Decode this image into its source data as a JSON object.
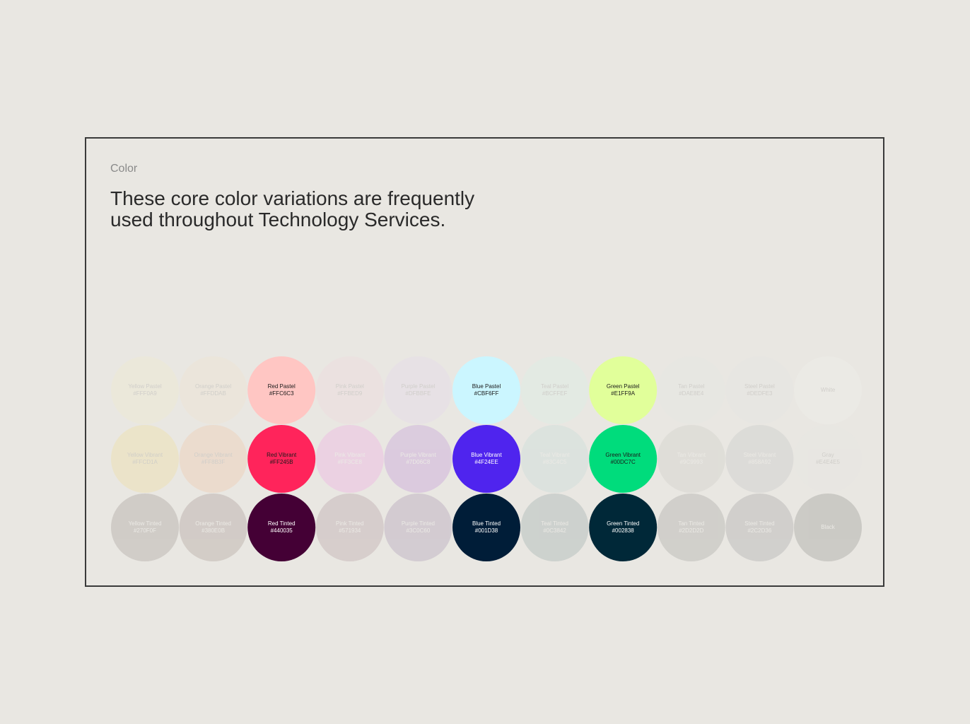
{
  "section_label": "Color",
  "heading": [
    "These core color variations are frequently",
    "used throughout Technology Services."
  ],
  "rows": [
    {
      "swatches": [
        {
          "name": "Yellow Pastel",
          "hex": "#FFF0A9",
          "color": "#FFF0A9",
          "text_color": "#1a1a1a",
          "active": false
        },
        {
          "name": "Orange Pastel",
          "hex": "#FFDDAB",
          "color": "#FFDDAB",
          "text_color": "#1a1a1a",
          "active": false
        },
        {
          "name": "Red Pastel",
          "hex": "#FFC6C3",
          "color": "#FFC6C3",
          "text_color": "#1a1a1a",
          "active": true
        },
        {
          "name": "Pink Pastel",
          "hex": "#FFBED9",
          "color": "#FFBED9",
          "text_color": "#1a1a1a",
          "active": false
        },
        {
          "name": "Purple Pastel",
          "hex": "#DFBBFE",
          "color": "#DFBBFE",
          "text_color": "#1a1a1a",
          "active": false
        },
        {
          "name": "Blue Pastel",
          "hex": "#CBF6FF",
          "color": "#CBF6FF",
          "text_color": "#1a1a1a",
          "active": true
        },
        {
          "name": "Teal Pastel",
          "hex": "#BCFFEF",
          "color": "#BCFFEF",
          "text_color": "#1a1a1a",
          "active": false
        },
        {
          "name": "Green Pastel",
          "hex": "#E1FF9A",
          "color": "#E1FF9A",
          "text_color": "#1a1a1a",
          "active": true
        },
        {
          "name": "Tan Pastel",
          "hex": "#DAE8E4",
          "color": "#DAE8E4",
          "text_color": "#1a1a1a",
          "active": false
        },
        {
          "name": "Steel Pastel",
          "hex": "#DEDFE3",
          "color": "#DEDFE3",
          "text_color": "#1a1a1a",
          "active": false
        },
        {
          "name": "White",
          "color": "#FFFFFF",
          "text_color": "#1a1a1a",
          "active": false
        }
      ]
    },
    {
      "swatches": [
        {
          "name": "Yellow Vibrant",
          "hex": "#FFCD1A",
          "color": "#FFCD1A",
          "text_color": "#1a1a1a",
          "active": false
        },
        {
          "name": "Orange Vibrant",
          "hex": "#FF8B3F",
          "color": "#FF8B3F",
          "text_color": "#1a1a1a",
          "active": false
        },
        {
          "name": "Red Vibrant",
          "hex": "#FF245B",
          "color": "#FF245B",
          "text_color": "#1a1a1a",
          "active": true
        },
        {
          "name": "Pink Vibrant",
          "hex": "#FF3CE8",
          "color": "#FF3CE8",
          "text_color": "#ffffff",
          "active": false
        },
        {
          "name": "Purple Vibrant",
          "hex": "#7D06C8",
          "color": "#7D06C8",
          "text_color": "#ffffff",
          "active": false
        },
        {
          "name": "Blue Vibrant",
          "hex": "#4F24EE",
          "color": "#4F24EE",
          "text_color": "#ffffff",
          "active": true
        },
        {
          "name": "Teal Vibrant",
          "hex": "#83C4C5",
          "color": "#83C4C5",
          "text_color": "#ffffff",
          "active": false
        },
        {
          "name": "Green Vibrant",
          "hex": "#00DC7C",
          "color": "#00DC7C",
          "text_color": "#1a1a1a",
          "active": true
        },
        {
          "name": "Tan Vibrant",
          "hex": "#9C9993",
          "color": "#9C9993",
          "text_color": "#ffffff",
          "active": false
        },
        {
          "name": "Steel Vibrant",
          "hex": "#858A92",
          "color": "#858A92",
          "text_color": "#ffffff",
          "active": false
        },
        {
          "name": "Gray",
          "hex": "#E4E4E5",
          "color": "#E4E4E5",
          "text_color": "#1a1a1a",
          "active": false
        }
      ]
    },
    {
      "swatches": [
        {
          "name": "Yellow Tinted",
          "hex": "#270F0F",
          "color": "#270F0F",
          "text_color": "#ffffff",
          "active": false
        },
        {
          "name": "Orange Tinted",
          "hex": "#380E0B",
          "color": "#380E0B",
          "text_color": "#ffffff",
          "active": false
        },
        {
          "name": "Red Tinted",
          "hex": "#440035",
          "color": "#440035",
          "text_color": "#ffffff",
          "active": true
        },
        {
          "name": "Pink Tinted",
          "hex": "#571934",
          "color": "#571934",
          "text_color": "#ffffff",
          "active": false
        },
        {
          "name": "Purple Tinted",
          "hex": "#3C0C60",
          "color": "#3C0C60",
          "text_color": "#ffffff",
          "active": false
        },
        {
          "name": "Blue Tinted",
          "hex": "#001D38",
          "color": "#001D38",
          "text_color": "#ffffff",
          "active": true
        },
        {
          "name": "Teal Tinted",
          "hex": "#0C3842",
          "color": "#0C3842",
          "text_color": "#ffffff",
          "active": false
        },
        {
          "name": "Green Tinted",
          "hex": "#002838",
          "color": "#002838",
          "text_color": "#ffffff",
          "active": true
        },
        {
          "name": "Tan Tinted",
          "hex": "#2D2D2D",
          "color": "#2D2D2D",
          "text_color": "#ffffff",
          "active": false
        },
        {
          "name": "Steel Tinted",
          "hex": "#2C2D36",
          "color": "#2C2D36",
          "text_color": "#ffffff",
          "active": false
        },
        {
          "name": "Black",
          "color": "#000000",
          "text_color": "#ffffff",
          "active": false
        }
      ]
    }
  ]
}
